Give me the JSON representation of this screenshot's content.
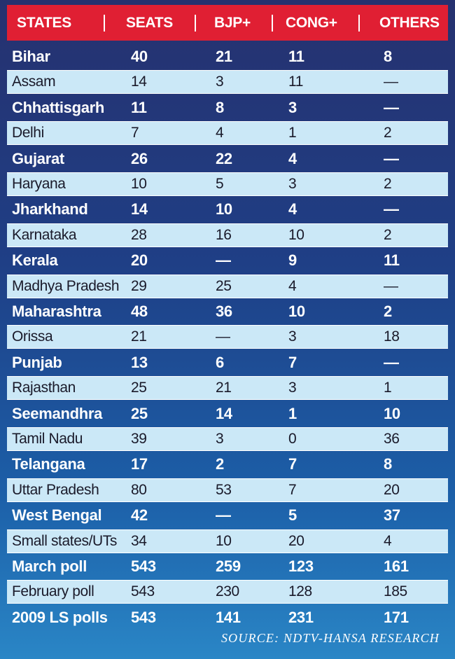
{
  "chart_data": {
    "type": "table",
    "columns": [
      "STATES",
      "SEATS",
      "BJP+",
      "CONG+",
      "OTHERS"
    ],
    "rows": [
      [
        "Bihar",
        "40",
        "21",
        "11",
        "8"
      ],
      [
        "Assam",
        "14",
        "3",
        "11",
        "—"
      ],
      [
        "Chhattisgarh",
        "11",
        "8",
        "3",
        "—"
      ],
      [
        "Delhi",
        "7",
        "4",
        "1",
        "2"
      ],
      [
        "Gujarat",
        "26",
        "22",
        "4",
        "—"
      ],
      [
        "Haryana",
        "10",
        "5",
        "3",
        "2"
      ],
      [
        "Jharkhand",
        "14",
        "10",
        "4",
        "—"
      ],
      [
        "Karnataka",
        "28",
        "16",
        "10",
        "2"
      ],
      [
        "Kerala",
        "20",
        "—",
        "9",
        "11"
      ],
      [
        "Madhya Pradesh",
        "29",
        "25",
        "4",
        "—"
      ],
      [
        "Maharashtra",
        "48",
        "36",
        "10",
        "2"
      ],
      [
        "Orissa",
        "21",
        "—",
        "3",
        "18"
      ],
      [
        "Punjab",
        "13",
        "6",
        "7",
        "—"
      ],
      [
        "Rajasthan",
        "25",
        "21",
        "3",
        "1"
      ],
      [
        "Seemandhra",
        "25",
        "14",
        "1",
        "10"
      ],
      [
        "Tamil Nadu",
        "39",
        "3",
        "0",
        "36"
      ],
      [
        "Telangana",
        "17",
        "2",
        "7",
        "8"
      ],
      [
        "Uttar Pradesh",
        "80",
        "53",
        "7",
        "20"
      ],
      [
        "West Bengal",
        "42",
        "—",
        "5",
        "37"
      ],
      [
        "Small states/UTs",
        "34",
        "10",
        "20",
        "4"
      ],
      [
        "March poll",
        "543",
        "259",
        "123",
        "161"
      ],
      [
        "February poll",
        "543",
        "230",
        "128",
        "185"
      ],
      [
        "2009 LS polls",
        "543",
        "141",
        "231",
        "171"
      ]
    ],
    "source": "SOURCE: NDTV-HANSA RESEARCH"
  },
  "colors": {
    "header_bg": "#e01f33",
    "light_row_bg": "#cbe8f7",
    "dark_row_text": "#ffffff",
    "light_row_text": "#1a1a2a"
  }
}
